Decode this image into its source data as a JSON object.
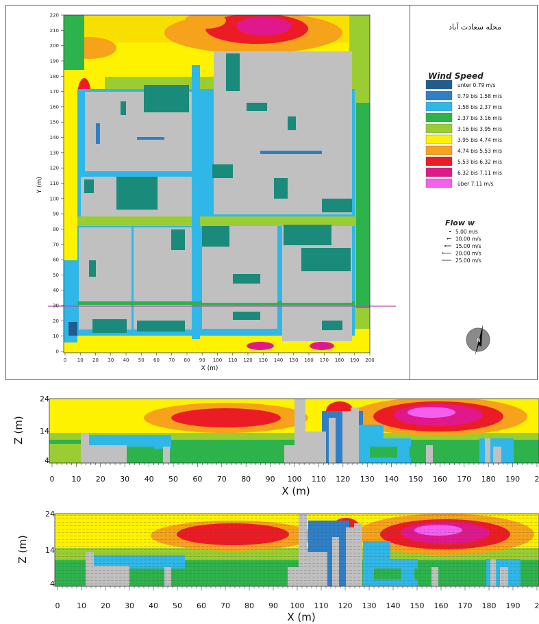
{
  "map": {
    "title_arabic": "محله سعادت آباد",
    "x_label": "X (m)",
    "y_label": "Y (m)",
    "x_ticks": [
      "0",
      "10",
      "20",
      "30",
      "40",
      "50",
      "60",
      "70",
      "80",
      "90",
      "100",
      "110",
      "120",
      "130",
      "140",
      "150",
      "160",
      "170",
      "180",
      "190",
      "200"
    ],
    "y_ticks": [
      "0",
      "10",
      "20",
      "30",
      "40",
      "50",
      "60",
      "70",
      "80",
      "90",
      "100",
      "110",
      "120",
      "130",
      "140",
      "150",
      "160",
      "170",
      "180",
      "190",
      "200",
      "210",
      "220"
    ],
    "section_line_y": 30
  },
  "legend": {
    "title": "Wind Speed",
    "items": [
      {
        "label": "unter 0.79 m/s",
        "color": "#1f5d8e"
      },
      {
        "label": "0.79 bis 1.58 m/s",
        "color": "#2f7fc6"
      },
      {
        "label": "1.58 bis 2.37 m/s",
        "color": "#2fb7e8"
      },
      {
        "label": "2.37 bis 3.16 m/s",
        "color": "#2db34c"
      },
      {
        "label": "3.16 bis 3.95 m/s",
        "color": "#9acd32"
      },
      {
        "label": "3.95 bis 4.74 m/s",
        "color": "#fff200"
      },
      {
        "label": "4.74 bis 5.53 m/s",
        "color": "#f7a21b"
      },
      {
        "label": "5.53 bis 6.32 m/s",
        "color": "#ec1c24"
      },
      {
        "label": "6.32 bis 7.11 m/s",
        "color": "#e0188c"
      },
      {
        "label": "über 7.11 m/s",
        "color": "#f45ff0"
      }
    ]
  },
  "flow": {
    "title": "Flow w",
    "items": [
      "5.00 m/s",
      "10.00 m/s",
      "15.00 m/s",
      "20.00 m/s",
      "25.00 m/s"
    ]
  },
  "compass": {
    "letter": "N"
  },
  "section1": {
    "z_label": "Z (m)",
    "x_label": "X (m)",
    "z_ticks": [
      "24",
      "14",
      "4"
    ],
    "x_ticks": [
      "0",
      "10",
      "20",
      "30",
      "40",
      "50",
      "60",
      "70",
      "80",
      "90",
      "100",
      "110",
      "120",
      "130",
      "140",
      "150",
      "160",
      "170",
      "180",
      "190",
      "2"
    ]
  },
  "section2": {
    "z_label": "Z (m)",
    "x_label": "X (m)",
    "z_ticks": [
      "24",
      "14",
      "4"
    ],
    "x_ticks": [
      "0",
      "10",
      "20",
      "30",
      "40",
      "50",
      "60",
      "70",
      "80",
      "90",
      "100",
      "110",
      "120",
      "130",
      "140",
      "150",
      "160",
      "170",
      "180",
      "190",
      "2"
    ]
  },
  "colors": {
    "building": "#c0c0c0",
    "tree": "#1a8a7a",
    "frame": "#555555"
  }
}
